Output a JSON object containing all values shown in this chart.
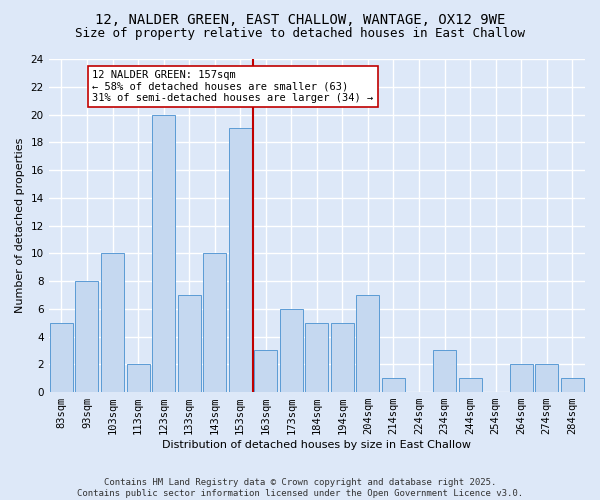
{
  "title_line1": "12, NALDER GREEN, EAST CHALLOW, WANTAGE, OX12 9WE",
  "title_line2": "Size of property relative to detached houses in East Challow",
  "xlabel": "Distribution of detached houses by size in East Challow",
  "ylabel": "Number of detached properties",
  "categories": [
    "83sqm",
    "93sqm",
    "103sqm",
    "113sqm",
    "123sqm",
    "133sqm",
    "143sqm",
    "153sqm",
    "163sqm",
    "173sqm",
    "184sqm",
    "194sqm",
    "204sqm",
    "214sqm",
    "224sqm",
    "234sqm",
    "244sqm",
    "254sqm",
    "264sqm",
    "274sqm",
    "284sqm"
  ],
  "values": [
    5,
    8,
    10,
    2,
    20,
    7,
    10,
    19,
    3,
    6,
    5,
    5,
    7,
    1,
    0,
    3,
    1,
    0,
    2,
    2,
    1
  ],
  "bar_color": "#c5d8f0",
  "bar_edge_color": "#5b9bd5",
  "subject_line_color": "#c00000",
  "annotation_text": "12 NALDER GREEN: 157sqm\n← 58% of detached houses are smaller (63)\n31% of semi-detached houses are larger (34) →",
  "annotation_box_facecolor": "#ffffff",
  "annotation_box_edgecolor": "#c00000",
  "ylim": [
    0,
    24
  ],
  "yticks": [
    0,
    2,
    4,
    6,
    8,
    10,
    12,
    14,
    16,
    18,
    20,
    22,
    24
  ],
  "footer_line1": "Contains HM Land Registry data © Crown copyright and database right 2025.",
  "footer_line2": "Contains public sector information licensed under the Open Government Licence v3.0.",
  "background_color": "#dde8f8",
  "grid_color": "#ffffff",
  "title_fontsize": 10,
  "subtitle_fontsize": 9,
  "axis_label_fontsize": 8,
  "tick_fontsize": 7.5,
  "annotation_fontsize": 7.5,
  "footer_fontsize": 6.5
}
